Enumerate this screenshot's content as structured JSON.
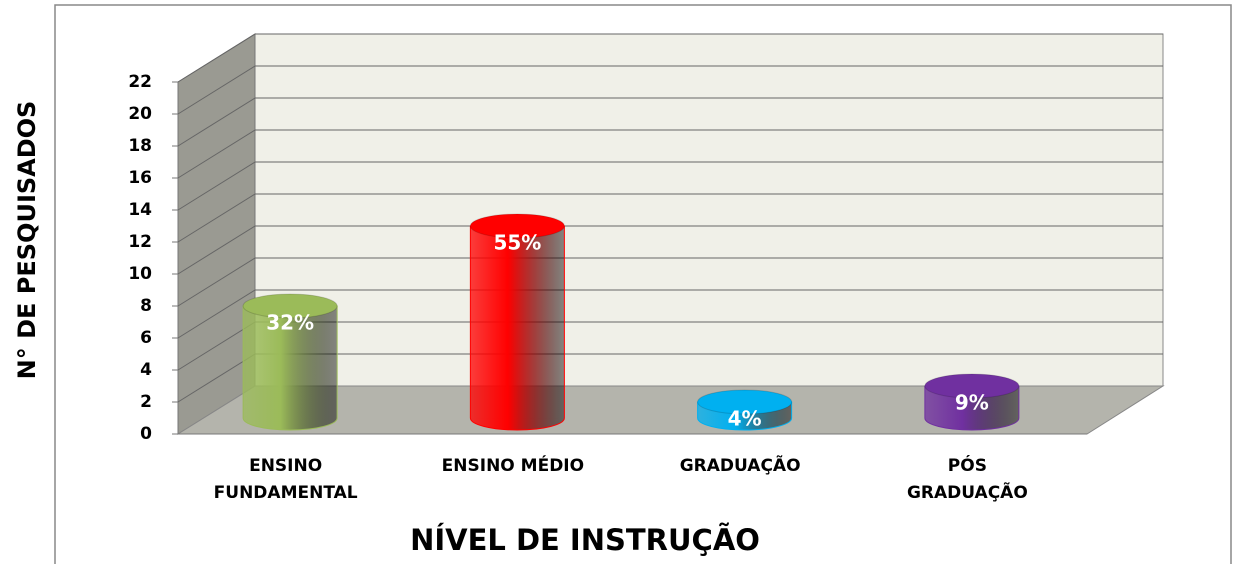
{
  "chart_data": {
    "type": "bar3d",
    "x_label": "NÍVEL DE INSTRUÇÃO",
    "y_label": "N° DE PESQUISADOS",
    "categories": [
      [
        "ENSINO",
        "FUNDAMENTAL"
      ],
      [
        "ENSINO MÉDIO"
      ],
      [
        "GRADUAÇÃO"
      ],
      [
        "PÓS",
        "GRADUAÇÃO"
      ]
    ],
    "values": [
      7,
      12,
      1,
      2
    ],
    "labels": [
      "32%",
      "55%",
      "4%",
      "9%"
    ],
    "colors": [
      "#9bbb59",
      "#ff0000",
      "#00b0f0",
      "#7030a0"
    ],
    "ylim": [
      0,
      22
    ],
    "yticks": [
      0,
      2,
      4,
      6,
      8,
      10,
      12,
      14,
      16,
      18,
      20,
      22
    ],
    "grid": true
  }
}
